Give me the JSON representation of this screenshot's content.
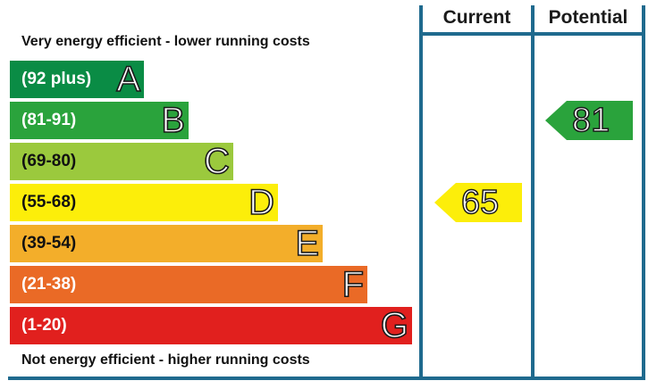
{
  "chart_data": {
    "type": "bar",
    "header": {
      "current": "Current",
      "potential": "Potential"
    },
    "top_caption": "Very energy efficient - lower running costs",
    "bottom_caption": "Not energy efficient - higher running costs",
    "bands": [
      {
        "letter": "A",
        "range": "(92 plus)",
        "min": 92,
        "max": 100,
        "color": "#0a8c45"
      },
      {
        "letter": "B",
        "range": "(81-91)",
        "min": 81,
        "max": 91,
        "color": "#2aa33c"
      },
      {
        "letter": "C",
        "range": "(69-80)",
        "min": 69,
        "max": 80,
        "color": "#9bc93d"
      },
      {
        "letter": "D",
        "range": "(55-68)",
        "min": 55,
        "max": 68,
        "color": "#fcee0a"
      },
      {
        "letter": "E",
        "range": "(39-54)",
        "min": 39,
        "max": 54,
        "color": "#f3ae2a"
      },
      {
        "letter": "F",
        "range": "(21-38)",
        "min": 21,
        "max": 38,
        "color": "#ea6a26"
      },
      {
        "letter": "G",
        "range": "(1-20)",
        "min": 1,
        "max": 20,
        "color": "#e1201e"
      }
    ],
    "current": {
      "value": 65,
      "band": "D",
      "color": "#fcee0a"
    },
    "potential": {
      "value": 81,
      "band": "B",
      "color": "#2aa33c"
    }
  }
}
